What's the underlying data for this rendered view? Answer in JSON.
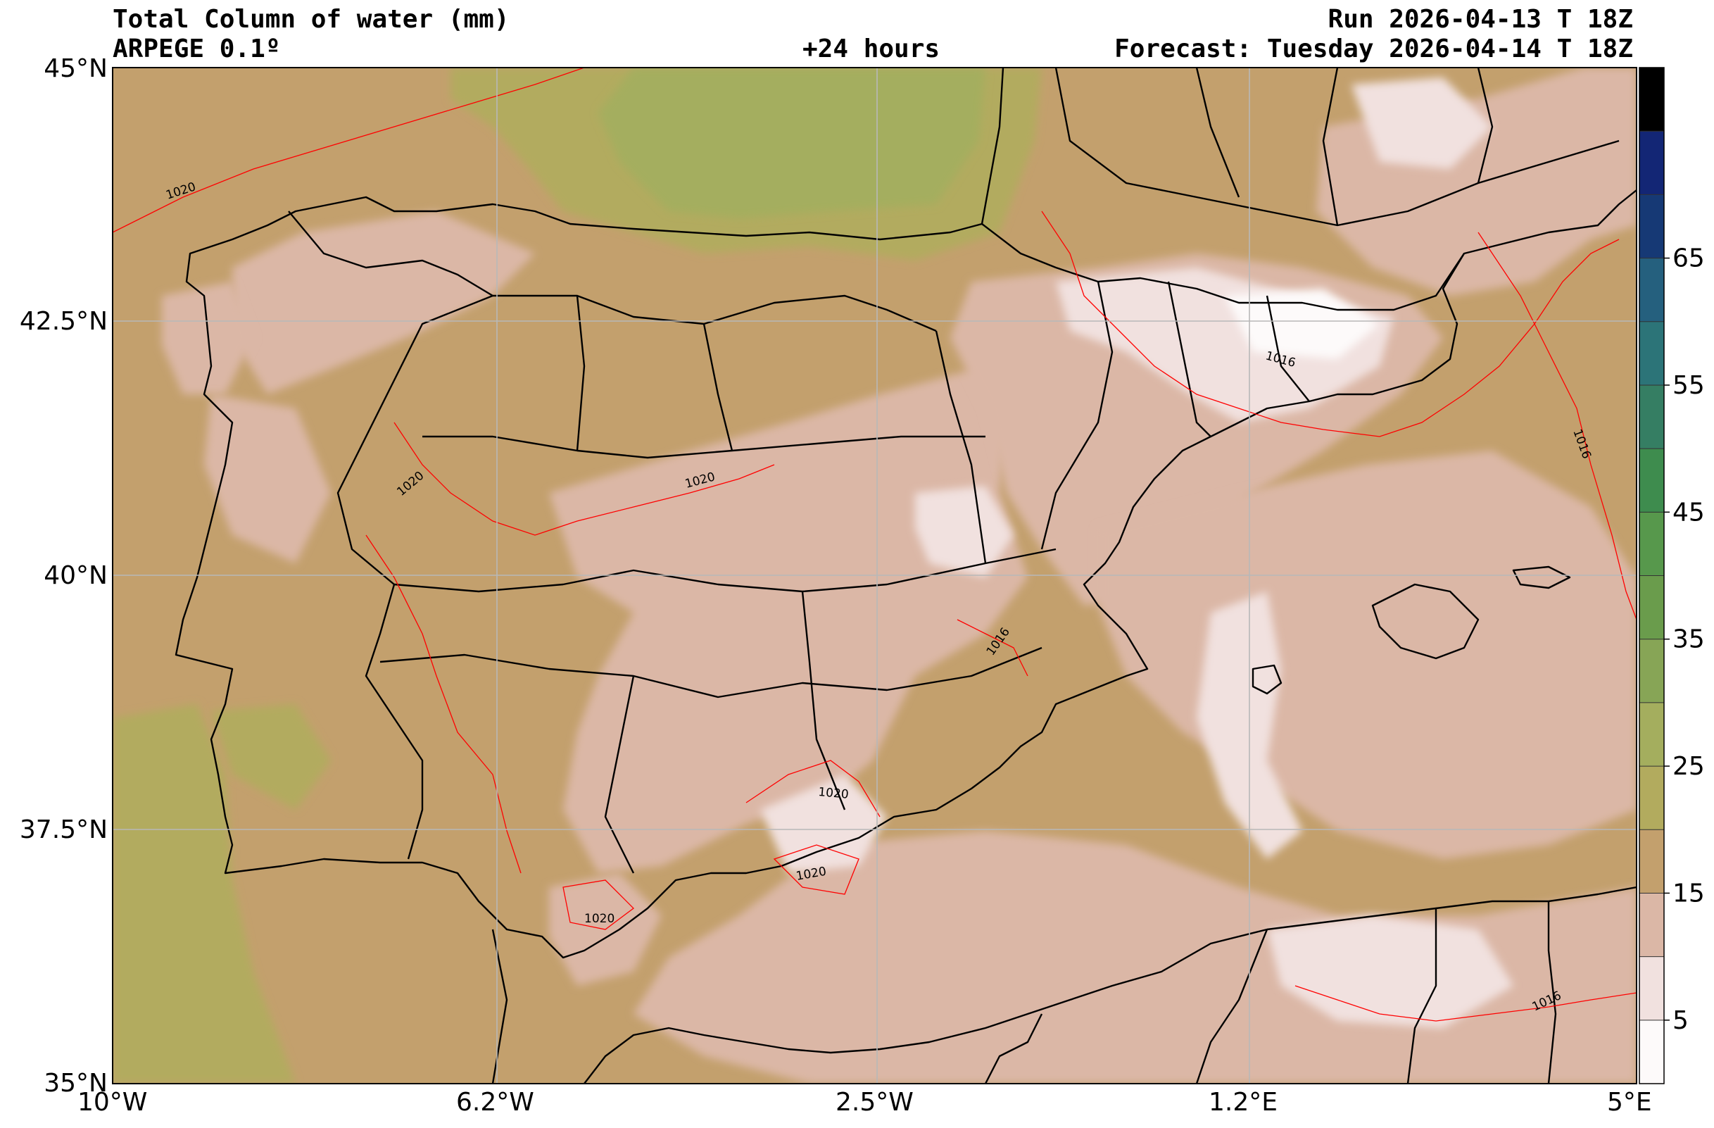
{
  "header": {
    "title": "Total Column of water (mm)",
    "model": "ARPEGE 0.1º",
    "lead": "+24 hours",
    "run": "Run 2026-04-13 T 18Z",
    "forecast": "Forecast: Tuesday 2026-04-14 T 18Z"
  },
  "axes": {
    "lon_ticks": [
      "10°W",
      "6.2°W",
      "2.5°W",
      "1.2°E",
      "5°E"
    ],
    "lat_ticks": [
      "45°N",
      "42.5°N",
      "40°N",
      "37.5°N",
      "35°N"
    ]
  },
  "colorbar": {
    "tick_labels": [
      "5",
      "15",
      "25",
      "35",
      "45",
      "55",
      "65"
    ],
    "colors": [
      "#fdfafa",
      "#f1e1df",
      "#dbb7a6",
      "#c3a06d",
      "#b2ab5e",
      "#a4ae5e",
      "#87a556",
      "#6a9c4c",
      "#57984c",
      "#3e8c4e",
      "#357e63",
      "#2c7478",
      "#25607e",
      "#163975",
      "#132675",
      "#000000"
    ]
  },
  "isobar_labels": [
    "1020",
    "1020",
    "1020",
    "1020",
    "1020",
    "1020",
    "1016",
    "1016",
    "1016",
    "1016"
  ],
  "colors": {
    "background": "#c3a06d",
    "grid": "#b8b8b8",
    "isobar": "#ff0000",
    "borders": "#000000"
  }
}
